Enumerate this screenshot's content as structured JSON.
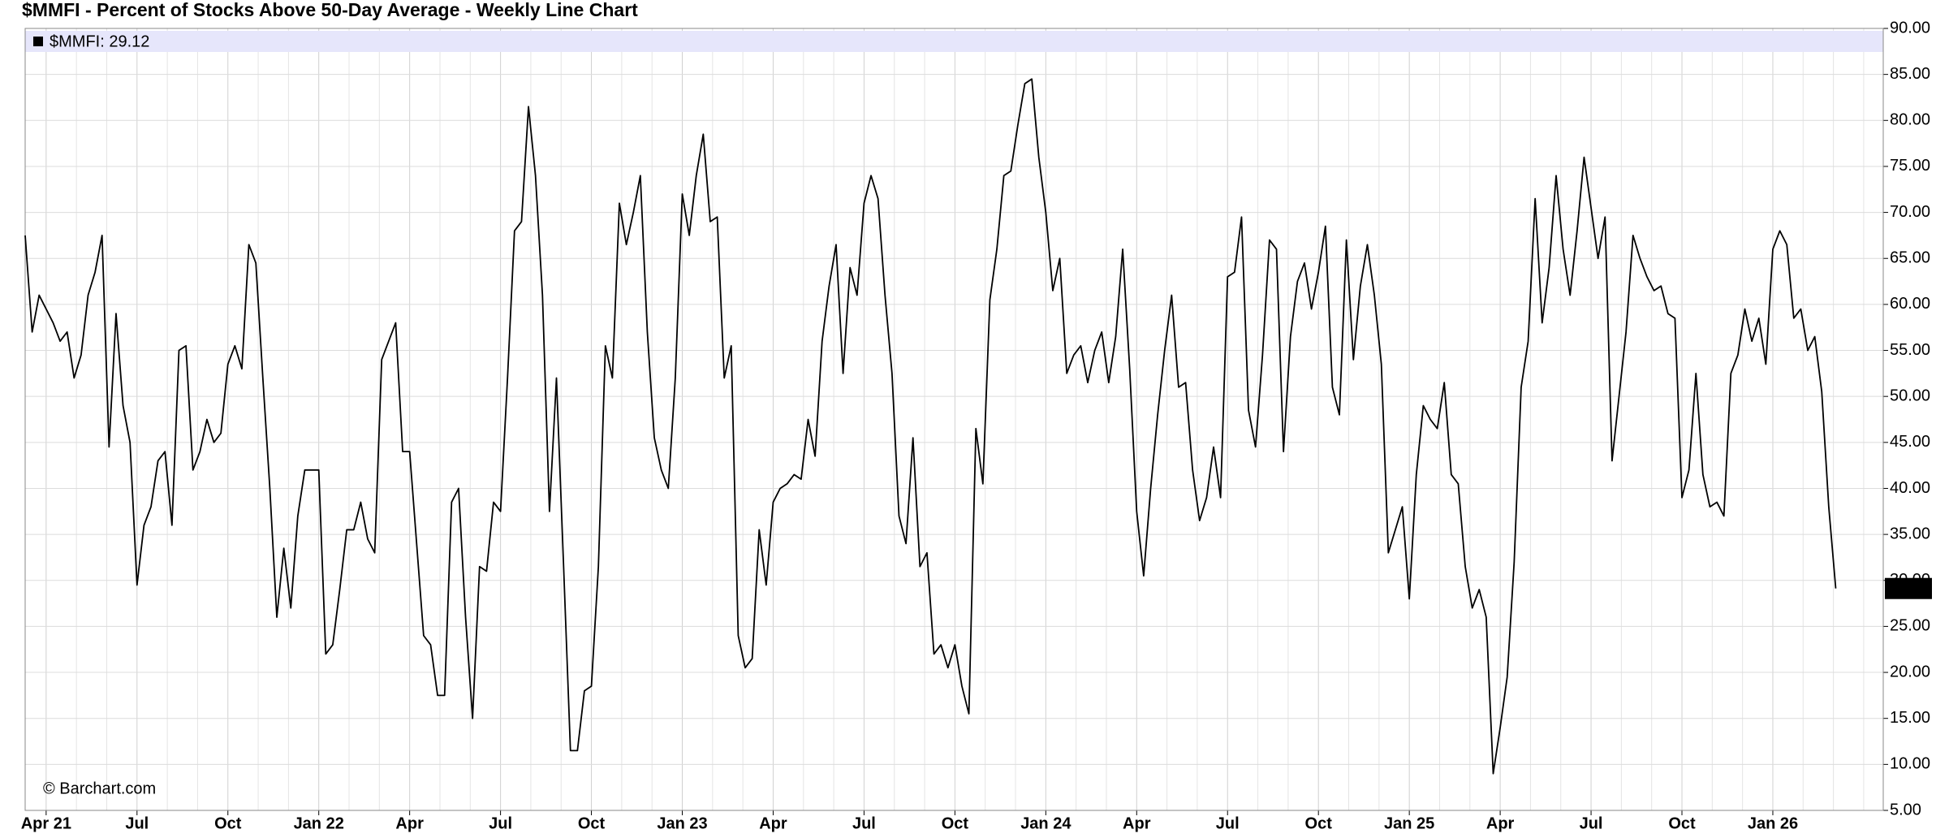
{
  "chart_data": {
    "type": "line",
    "title": "$MMFI - Percent of Stocks Above 50-Day Average - Weekly Line Chart",
    "watermark": "© Barchart.com",
    "categories": [
      null,
      null,
      null,
      "Apr 21",
      null,
      null,
      null,
      null,
      null,
      null,
      null,
      null,
      null,
      null,
      null,
      null,
      "Jul",
      null,
      null,
      null,
      null,
      null,
      null,
      null,
      null,
      null,
      null,
      null,
      null,
      "Oct",
      null,
      null,
      null,
      null,
      null,
      null,
      null,
      null,
      null,
      null,
      null,
      null,
      "Jan 22",
      null,
      null,
      null,
      null,
      null,
      null,
      null,
      null,
      null,
      null,
      null,
      null,
      "Apr",
      null,
      null,
      null,
      null,
      null,
      null,
      null,
      null,
      null,
      null,
      null,
      null,
      "Jul",
      null,
      null,
      null,
      null,
      null,
      null,
      null,
      null,
      null,
      null,
      null,
      null,
      "Oct",
      null,
      null,
      null,
      null,
      null,
      null,
      null,
      null,
      null,
      null,
      null,
      null,
      "Jan 23",
      null,
      null,
      null,
      null,
      null,
      null,
      null,
      null,
      null,
      null,
      null,
      null,
      "Apr",
      null,
      null,
      null,
      null,
      null,
      null,
      null,
      null,
      null,
      null,
      null,
      null,
      "Jul",
      null,
      null,
      null,
      null,
      null,
      null,
      null,
      null,
      null,
      null,
      null,
      null,
      "Oct",
      null,
      null,
      null,
      null,
      null,
      null,
      null,
      null,
      null,
      null,
      null,
      null,
      "Jan 24",
      null,
      null,
      null,
      null,
      null,
      null,
      null,
      null,
      null,
      null,
      null,
      null,
      "Apr",
      null,
      null,
      null,
      null,
      null,
      null,
      null,
      null,
      null,
      null,
      null,
      null,
      "Jul",
      null,
      null,
      null,
      null,
      null,
      null,
      null,
      null,
      null,
      null,
      null,
      null,
      "Oct",
      null,
      null,
      null,
      null,
      null,
      null,
      null,
      null,
      null,
      null,
      null,
      null,
      "Jan 25",
      null,
      null,
      null,
      null,
      null,
      null,
      null,
      null,
      null,
      null,
      null,
      null,
      "Apr",
      null,
      null,
      null,
      null,
      null,
      null,
      null,
      null,
      null,
      null,
      null,
      null,
      "Jul",
      null,
      null,
      null,
      null,
      null,
      null,
      null,
      null,
      null,
      null,
      null,
      null,
      "Oct",
      null,
      null,
      null,
      null,
      null,
      null,
      null,
      null,
      null,
      null,
      null,
      null,
      "Jan 26",
      null,
      null,
      null,
      null,
      null,
      null,
      null,
      null,
      null
    ],
    "series": [
      {
        "name": "$MMFI: 29.12",
        "color": "#000000",
        "values": [
          67.5,
          57,
          61,
          59.5,
          58,
          56,
          57,
          52,
          54.5,
          61,
          63.5,
          67.5,
          44.5,
          59,
          49,
          45,
          29.5,
          36,
          38,
          43,
          44,
          36,
          55,
          55.5,
          42,
          44,
          47.5,
          45,
          46,
          53.5,
          55.5,
          53,
          66.5,
          64.5,
          52,
          40,
          26,
          33.5,
          27,
          37,
          42,
          42,
          42,
          22,
          23,
          29,
          35.5,
          35.5,
          38.5,
          34.5,
          33,
          54,
          56,
          58,
          44,
          44,
          34,
          24,
          23,
          17.5,
          17.5,
          38.5,
          40,
          26,
          15,
          31.5,
          31,
          38.5,
          37.5,
          52,
          68,
          69,
          81.5,
          74,
          61,
          37.5,
          52,
          32,
          11.5,
          11.5,
          18,
          18.5,
          31.5,
          55.5,
          52,
          71,
          66.5,
          70,
          74,
          57,
          45.5,
          42,
          40,
          52,
          72,
          67.5,
          74,
          78.5,
          69,
          69.5,
          52,
          55.5,
          24,
          20.5,
          21.5,
          35.5,
          29.5,
          38.5,
          40,
          40.5,
          41.5,
          41,
          47.5,
          43.5,
          56,
          62,
          66.5,
          52.5,
          64,
          61,
          71,
          74,
          71.5,
          61,
          52.5,
          37,
          34,
          45.5,
          31.5,
          33,
          22,
          23,
          20.5,
          23,
          18.5,
          15.5,
          46.5,
          40.5,
          60.5,
          66,
          74,
          74.5,
          79.5,
          84,
          84.5,
          76,
          70,
          61.5,
          65,
          52.5,
          54.5,
          55.5,
          51.5,
          55,
          57,
          51.5,
          56.5,
          66,
          53,
          37.5,
          30.5,
          40,
          48,
          55,
          61,
          51,
          51.5,
          42,
          36.5,
          39,
          44.5,
          39,
          63,
          63.5,
          69.5,
          48.5,
          44.5,
          54.5,
          67,
          66,
          44,
          56.5,
          62.5,
          64.5,
          59.5,
          63.5,
          68.5,
          51,
          48,
          67,
          54,
          62,
          66.5,
          61,
          53.5,
          33,
          35.5,
          38,
          28,
          41.5,
          49,
          47.5,
          46.5,
          51.5,
          41.5,
          40.5,
          31.5,
          27,
          29,
          26,
          9,
          14,
          19.5,
          32,
          51,
          56,
          71.5,
          58,
          64,
          74,
          66,
          61,
          68,
          76,
          70.5,
          65,
          69.5,
          43,
          50,
          57,
          67.5,
          65,
          63,
          61.5,
          62,
          59,
          58.5,
          39,
          42,
          52.5,
          41.5,
          38,
          38.5,
          37,
          52.5,
          54.5,
          59.5,
          56,
          58.5,
          53.5,
          66,
          68,
          66.5,
          58.5,
          59.5,
          55,
          56.5,
          50.5,
          38,
          29.12
        ]
      }
    ],
    "ylim": [
      5,
      90
    ],
    "yticks": [
      {
        "value": 5,
        "label": "5.00"
      },
      {
        "value": 10,
        "label": "10.00"
      },
      {
        "value": 15,
        "label": "15.00"
      },
      {
        "value": 20,
        "label": "20.00"
      },
      {
        "value": 25,
        "label": "25.00"
      },
      {
        "value": 30,
        "label": "30.00"
      },
      {
        "value": 35,
        "label": "35.00"
      },
      {
        "value": 40,
        "label": "40.00"
      },
      {
        "value": 45,
        "label": "45.00"
      },
      {
        "value": 50,
        "label": "50.00"
      },
      {
        "value": 55,
        "label": "55.00"
      },
      {
        "value": 60,
        "label": "60.00"
      },
      {
        "value": 65,
        "label": "65.00"
      },
      {
        "value": 70,
        "label": "70.00"
      },
      {
        "value": 75,
        "label": "75.00"
      },
      {
        "value": 80,
        "label": "80.00"
      },
      {
        "value": 85,
        "label": "85.00"
      },
      {
        "value": 90,
        "label": "90.00"
      }
    ],
    "grid": true,
    "legend": "top-left"
  }
}
